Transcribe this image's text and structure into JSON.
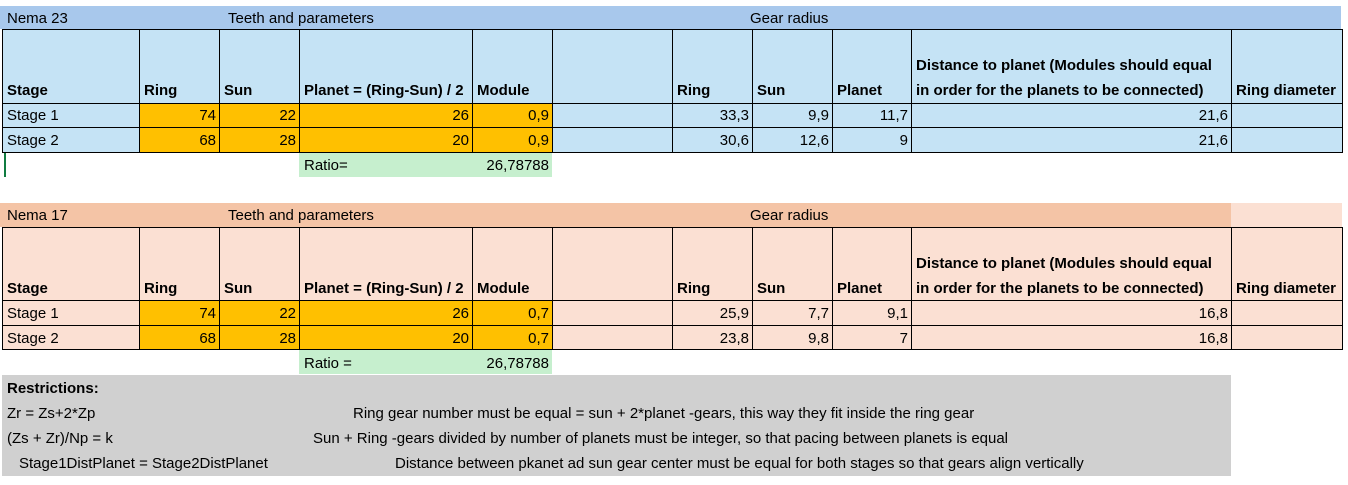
{
  "colors": {
    "blue_header": "#a8c8ec",
    "blue_light": "#c5e3f5",
    "orange": "#ffc000",
    "green": "#c6efce",
    "salmon_header": "#f4c4a6",
    "salmon_light": "#fbe0d3",
    "gray": "#d0d0d0"
  },
  "nema23": {
    "title": "Nema 23",
    "teeth_label": "Teeth and parameters",
    "radius_label": "Gear radius",
    "headers": {
      "stage": "Stage",
      "ring": "Ring",
      "sun": "Sun",
      "planet": "Planet = (Ring-Sun) / 2",
      "module": "Module",
      "r_ring": "Ring",
      "r_sun": "Sun",
      "r_planet": "Planet",
      "dist_line1": "Distance to planet (Modules should equal",
      "dist_line2": "in order for the planets to be connected)",
      "ring_diameter": "Ring diameter"
    },
    "rows": [
      {
        "stage": "Stage 1",
        "ring": "74",
        "sun": "22",
        "planet": "26",
        "module": "0,9",
        "r_ring": "33,3",
        "r_sun": "9,9",
        "r_planet": "11,7",
        "dist": "21,6"
      },
      {
        "stage": "Stage 2",
        "ring": "68",
        "sun": "28",
        "planet": "20",
        "module": "0,9",
        "r_ring": "30,6",
        "r_sun": "12,6",
        "r_planet": "9",
        "dist": "21,6"
      }
    ],
    "ratio_label": "Ratio=",
    "ratio_value": "26,78788"
  },
  "nema17": {
    "title": "Nema 17",
    "teeth_label": "Teeth and parameters",
    "radius_label": "Gear radius",
    "headers": {
      "stage": "Stage",
      "ring": "Ring",
      "sun": "Sun",
      "planet": "Planet = (Ring-Sun) / 2",
      "module": "Module",
      "r_ring": "Ring",
      "r_sun": "Sun",
      "r_planet": "Planet",
      "dist_line1": "Distance to planet (Modules should equal",
      "dist_line2": "in order for the planets to be connected)",
      "ring_diameter": "Ring diameter"
    },
    "rows": [
      {
        "stage": "Stage 1",
        "ring": "74",
        "sun": "22",
        "planet": "26",
        "module": "0,7",
        "r_ring": "25,9",
        "r_sun": "7,7",
        "r_planet": "9,1",
        "dist": "16,8"
      },
      {
        "stage": "Stage 2",
        "ring": "68",
        "sun": "28",
        "planet": "20",
        "module": "0,7",
        "r_ring": "23,8",
        "r_sun": "9,8",
        "r_planet": "7",
        "dist": "16,8"
      }
    ],
    "ratio_label": "Ratio =",
    "ratio_value": "26,78788"
  },
  "restrictions": {
    "title": "Restrictions:",
    "items": [
      {
        "formula": "Zr = Zs+2*Zp",
        "desc": "Ring gear number must be equal = sun + 2*planet -gears, this way they fit inside the ring gear"
      },
      {
        "formula": "(Zs + Zr)/Np = k",
        "desc": "Sun + Ring -gears divided by number of planets must be integer, so that pacing between planets is equal"
      },
      {
        "formula": "Stage1DistPlanet = Stage2DistPlanet",
        "desc": "Distance between pkanet ad sun gear center must be equal for both stages so that gears align vertically"
      }
    ]
  }
}
